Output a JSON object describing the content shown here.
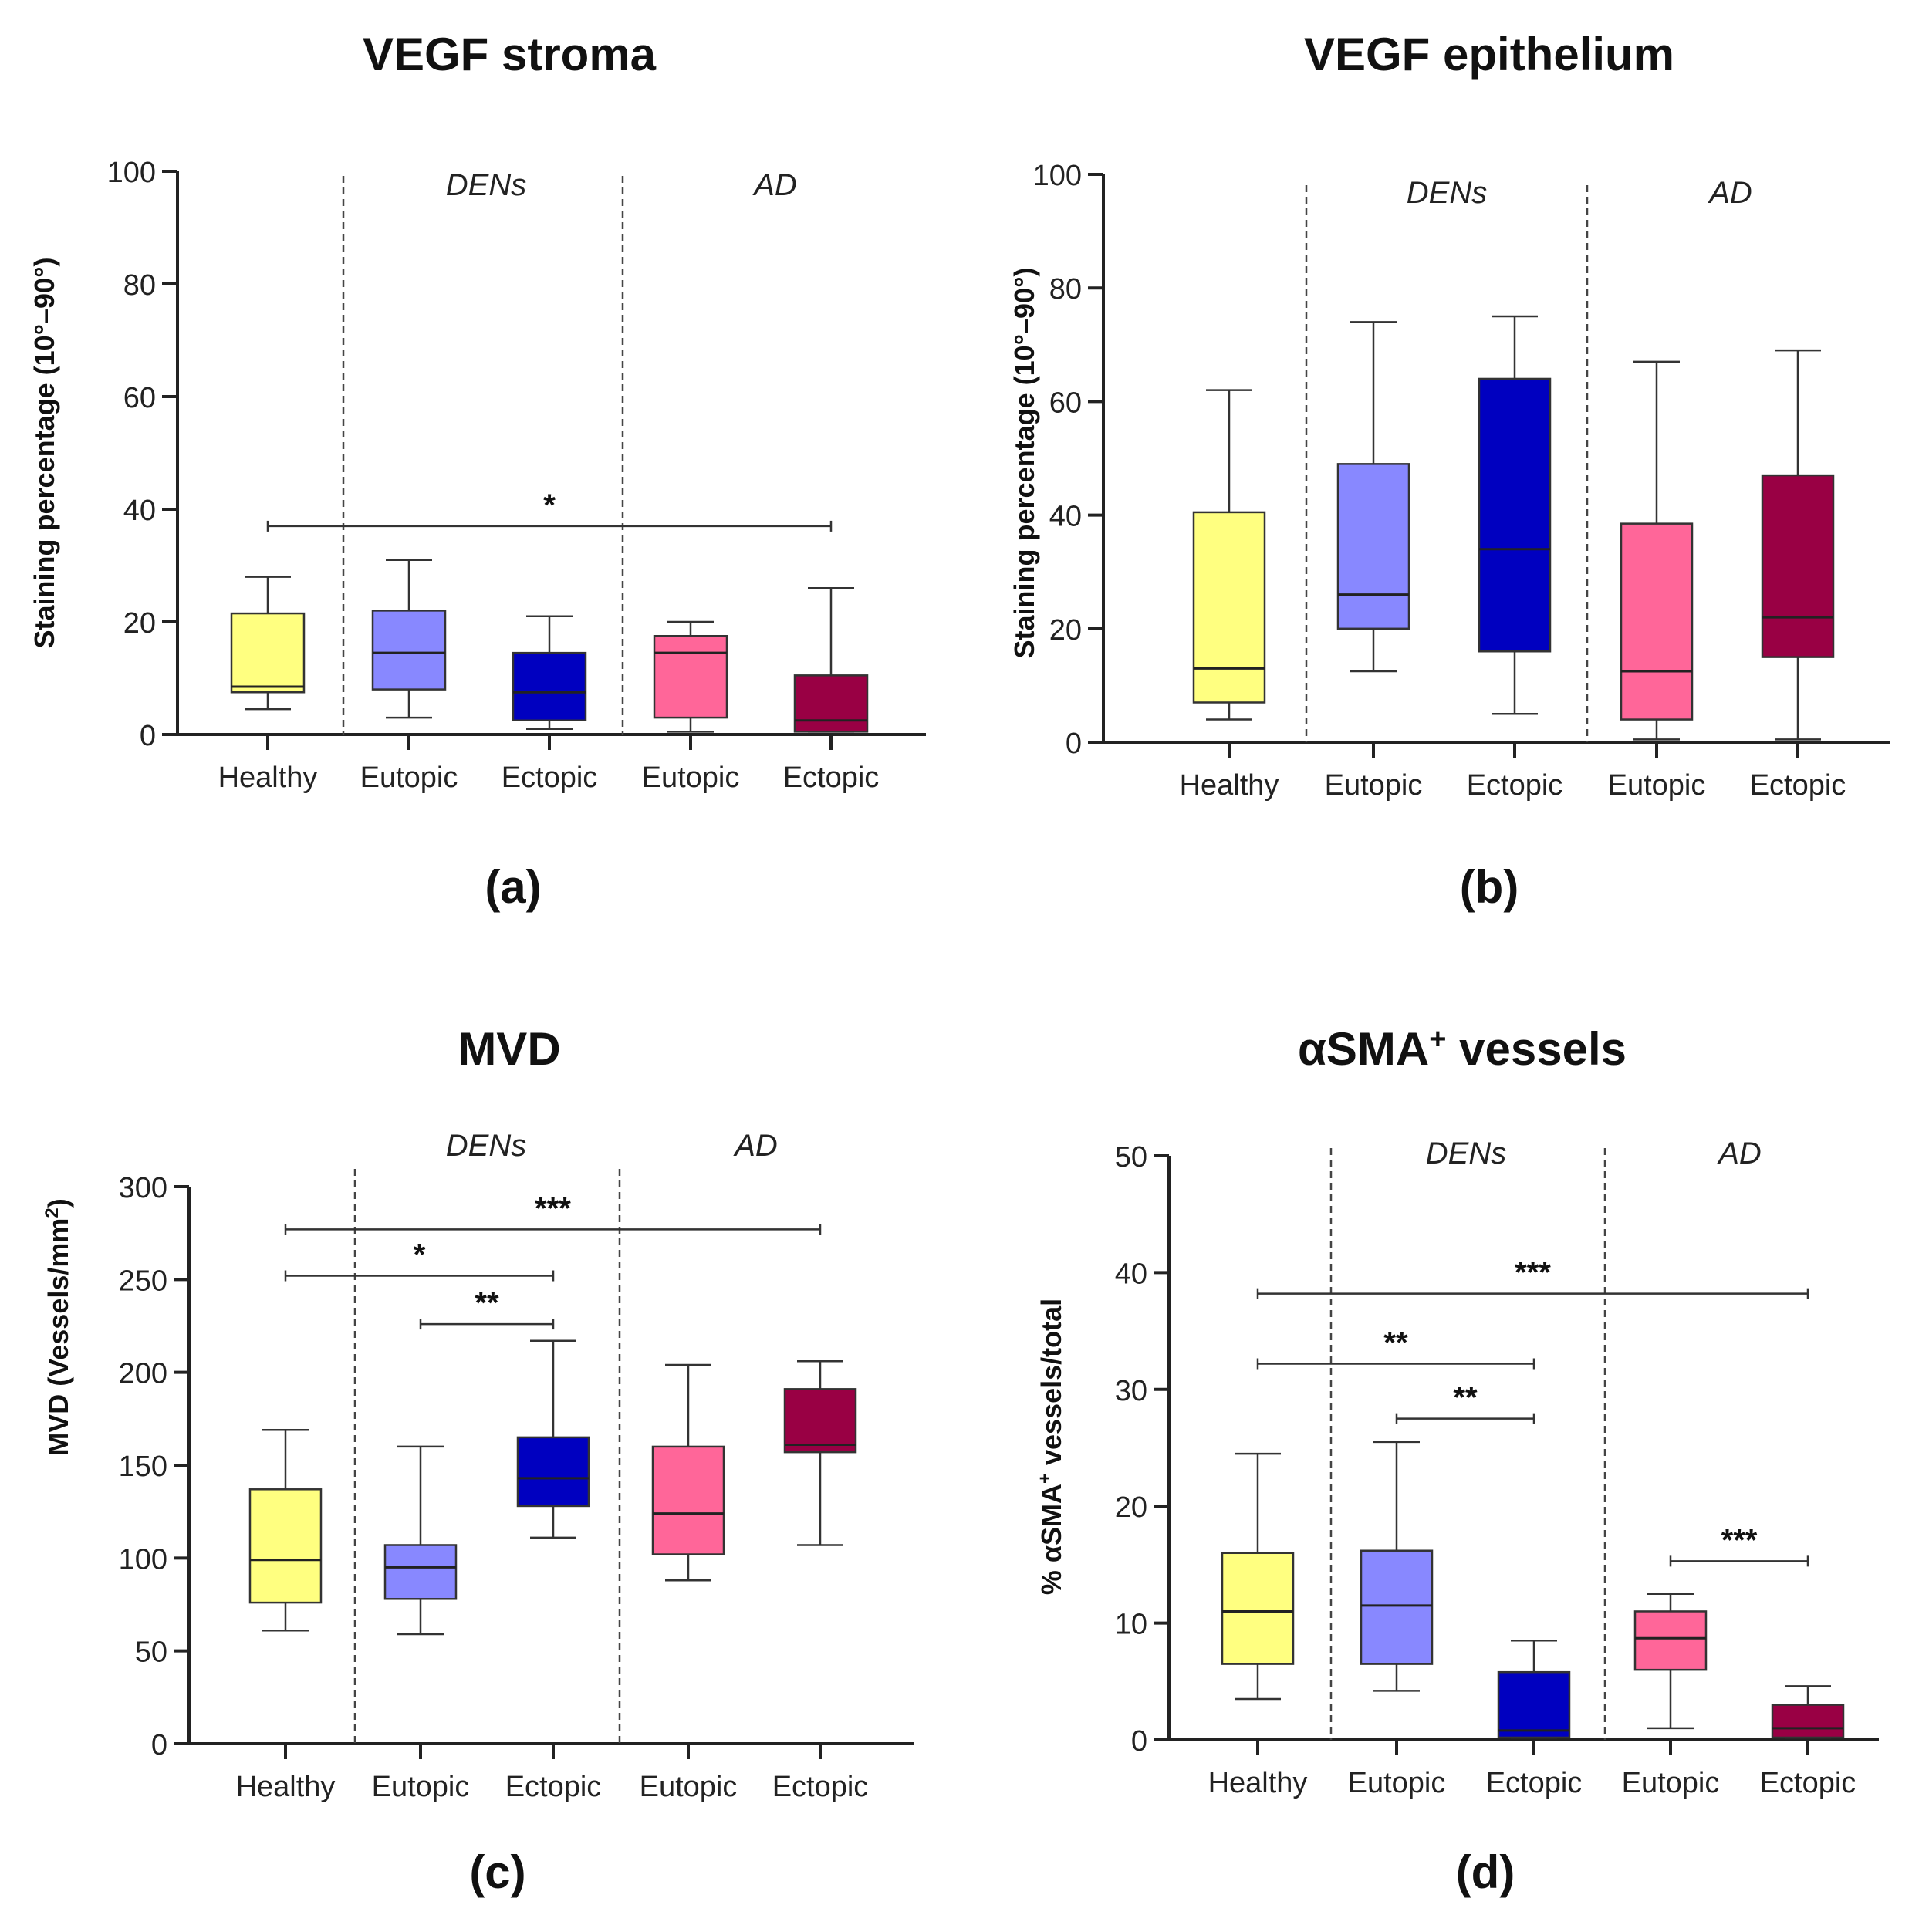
{
  "chart_data": [
    {
      "type": "box",
      "title": "VEGF stroma",
      "panel_label": "(a)",
      "ylabel": "Staining percentage (10°–90°)",
      "ylim": [
        0,
        100
      ],
      "yticks": [
        0,
        20,
        40,
        60,
        80,
        100
      ],
      "group_labels": [
        "DENs",
        "AD"
      ],
      "categories": [
        "Healthy",
        "Eutopic",
        "Ectopic",
        "Eutopic",
        "Ectopic"
      ],
      "colors": [
        "#ffff80",
        "#8888ff",
        "#0000c0",
        "#ff6699",
        "#990044"
      ],
      "boxes": [
        {
          "min": 4.5,
          "q1": 7.5,
          "median": 8.5,
          "q3": 21.5,
          "max": 28
        },
        {
          "min": 3,
          "q1": 8,
          "median": 14.5,
          "q3": 22,
          "max": 31
        },
        {
          "min": 1,
          "q1": 2.5,
          "median": 7.5,
          "q3": 14.5,
          "max": 21
        },
        {
          "min": 0.5,
          "q1": 3,
          "median": 14.5,
          "q3": 17.5,
          "max": 20
        },
        {
          "min": 0.5,
          "q1": 0.5,
          "median": 2.5,
          "q3": 10.5,
          "max": 26
        }
      ],
      "significance": [
        {
          "from": 0,
          "to": 4,
          "y": 37,
          "label": "*"
        }
      ]
    },
    {
      "type": "box",
      "title": "VEGF epithelium",
      "panel_label": "(b)",
      "ylabel": "Staining percentage (10°–90°)",
      "ylim": [
        0,
        100
      ],
      "yticks": [
        0,
        20,
        40,
        60,
        80,
        100
      ],
      "group_labels": [
        "DENs",
        "AD"
      ],
      "categories": [
        "Healthy",
        "Eutopic",
        "Ectopic",
        "Eutopic",
        "Ectopic"
      ],
      "colors": [
        "#ffff80",
        "#8888ff",
        "#0000c0",
        "#ff6699",
        "#990044"
      ],
      "boxes": [
        {
          "min": 4,
          "q1": 7,
          "median": 13,
          "q3": 40.5,
          "max": 62
        },
        {
          "min": 12.5,
          "q1": 20,
          "median": 26,
          "q3": 49,
          "max": 74
        },
        {
          "min": 5,
          "q1": 16,
          "median": 34,
          "q3": 64,
          "max": 75
        },
        {
          "min": 0.5,
          "q1": 4,
          "median": 12.5,
          "q3": 38.5,
          "max": 67
        },
        {
          "min": 0.5,
          "q1": 15,
          "median": 22,
          "q3": 47,
          "max": 69
        }
      ],
      "significance": []
    },
    {
      "type": "box",
      "title": "MVD",
      "panel_label": "(c)",
      "ylabel": "MVD (Vessels/mm",
      "ylabel_sup": "2",
      "ylabel_end": ")",
      "ylim": [
        0,
        300
      ],
      "yticks": [
        0,
        50,
        100,
        150,
        200,
        250,
        300
      ],
      "group_labels": [
        "DENs",
        "AD"
      ],
      "categories": [
        "Healthy",
        "Eutopic",
        "Ectopic",
        "Eutopic",
        "Ectopic"
      ],
      "colors": [
        "#ffff80",
        "#8888ff",
        "#0000c0",
        "#ff6699",
        "#990044"
      ],
      "boxes": [
        {
          "min": 61,
          "q1": 76,
          "median": 99,
          "q3": 137,
          "max": 169
        },
        {
          "min": 59,
          "q1": 78,
          "median": 95,
          "q3": 107,
          "max": 160
        },
        {
          "min": 111,
          "q1": 128,
          "median": 143,
          "q3": 165,
          "max": 217
        },
        {
          "min": 88,
          "q1": 102,
          "median": 124,
          "q3": 160,
          "max": 204
        },
        {
          "min": 107,
          "q1": 157,
          "median": 161,
          "q3": 191,
          "max": 206
        }
      ],
      "significance": [
        {
          "from": 0,
          "to": 4,
          "y": 277,
          "label": "***"
        },
        {
          "from": 0,
          "to": 2,
          "y": 252,
          "label": "*"
        },
        {
          "from": 1,
          "to": 2,
          "y": 226,
          "label": "**"
        }
      ]
    },
    {
      "type": "box",
      "title": "αSMA",
      "title_sup": "+",
      "title_end": " vessels",
      "panel_label": "(d)",
      "ylabel": "% αSMA",
      "ylabel_sup": "+",
      "ylabel_end": " vessels/total",
      "ylim": [
        0,
        50
      ],
      "yticks": [
        0,
        10,
        20,
        30,
        40,
        50
      ],
      "group_labels": [
        "DENs",
        "AD"
      ],
      "categories": [
        "Healthy",
        "Eutopic",
        "Ectopic",
        "Eutopic",
        "Ectopic"
      ],
      "colors": [
        "#ffff80",
        "#8888ff",
        "#0000c0",
        "#ff6699",
        "#990044"
      ],
      "boxes": [
        {
          "min": 3.5,
          "q1": 6.5,
          "median": 11,
          "q3": 16,
          "max": 24.5
        },
        {
          "min": 4.2,
          "q1": 6.5,
          "median": 11.5,
          "q3": 16.2,
          "max": 25.5
        },
        {
          "min": 0.2,
          "q1": 0.2,
          "median": 0.8,
          "q3": 5.8,
          "max": 8.5
        },
        {
          "min": 1,
          "q1": 6,
          "median": 8.7,
          "q3": 11,
          "max": 12.5
        },
        {
          "min": 0.2,
          "q1": 0.2,
          "median": 1,
          "q3": 3,
          "max": 4.6
        }
      ],
      "significance": [
        {
          "from": 0,
          "to": 4,
          "y": 38.2,
          "label": "***"
        },
        {
          "from": 0,
          "to": 2,
          "y": 32.2,
          "label": "**"
        },
        {
          "from": 1,
          "to": 2,
          "y": 27.5,
          "label": "**"
        },
        {
          "from": 3,
          "to": 4,
          "y": 15.3,
          "label": "***"
        }
      ]
    }
  ]
}
